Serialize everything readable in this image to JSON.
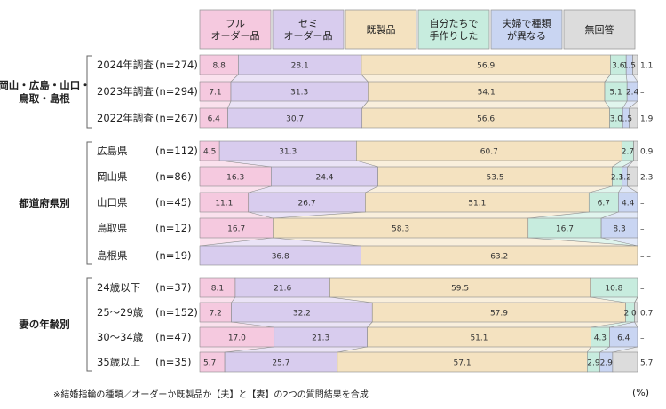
{
  "footnote": "※結婚指輪の種類／オーダーか既製品か【夫】と【妻】の2つの質問結果を合成",
  "unit_label": "(%)",
  "colors": {
    "full_order": "#f5c9df",
    "semi_order": "#d8ccee",
    "ready_made": "#f4e2c0",
    "self_made": "#c7ecde",
    "different": "#c9d5f2",
    "no_answer": "#dcdcdc"
  },
  "chart_data": {
    "type": "bar",
    "orientation": "horizontal",
    "stacked": true,
    "xlim": [
      0,
      100
    ],
    "legend_position": "top",
    "categories_legend": [
      {
        "key": "full_order",
        "label_lines": [
          "フル",
          "オーダー品"
        ]
      },
      {
        "key": "semi_order",
        "label_lines": [
          "セミ",
          "オーダー品"
        ]
      },
      {
        "key": "ready_made",
        "label_lines": [
          "既製品"
        ]
      },
      {
        "key": "self_made",
        "label_lines": [
          "自分たちで",
          "手作りした"
        ]
      },
      {
        "key": "different",
        "label_lines": [
          "夫婦で種類",
          "が異なる"
        ]
      },
      {
        "key": "no_answer",
        "label_lines": [
          "無回答"
        ]
      }
    ],
    "groups": [
      {
        "label_lines": [
          "岡山・広島・山口・",
          "鳥取・島根"
        ],
        "rows": [
          {
            "label": "2024年調査",
            "n": "(n=274)",
            "values": [
              8.8,
              28.1,
              56.9,
              3.6,
              1.5,
              1.1
            ],
            "labels": [
              "8.8",
              "28.1",
              "56.9",
              "3.6",
              "1.5",
              "1.1"
            ]
          },
          {
            "label": "2023年調査",
            "n": "(n=294)",
            "values": [
              7.1,
              31.3,
              54.1,
              5.1,
              2.4,
              0
            ],
            "labels": [
              "7.1",
              "31.3",
              "54.1",
              "5.1",
              "2.4",
              "–"
            ]
          },
          {
            "label": "2022年調査",
            "n": "(n=267)",
            "values": [
              6.4,
              30.7,
              56.6,
              3.0,
              1.5,
              1.9
            ],
            "labels": [
              "6.4",
              "30.7",
              "56.6",
              "3.0",
              "1.5",
              "1.9"
            ]
          }
        ]
      },
      {
        "label_lines": [
          "都道府県別"
        ],
        "rows": [
          {
            "label": "広島県",
            "n": "(n=112)",
            "values": [
              4.5,
              31.3,
              60.7,
              2.7,
              0,
              0.9
            ],
            "labels": [
              "4.5",
              "31.3",
              "60.7",
              "2.7",
              "",
              "0.9"
            ]
          },
          {
            "label": "岡山県",
            "n": "(n=86)",
            "values": [
              16.3,
              24.4,
              53.5,
              2.3,
              1.2,
              2.3
            ],
            "labels": [
              "16.3",
              "24.4",
              "53.5",
              "2.3",
              "1.2",
              "2.3"
            ]
          },
          {
            "label": "山口県",
            "n": "(n=45)",
            "values": [
              11.1,
              26.7,
              51.1,
              6.7,
              4.4,
              0
            ],
            "labels": [
              "11.1",
              "26.7",
              "51.1",
              "6.7",
              "4.4",
              "–"
            ]
          },
          {
            "label": "鳥取県",
            "n": "(n=12)",
            "values": [
              16.7,
              0,
              58.3,
              16.7,
              8.3,
              0
            ],
            "labels": [
              "16.7",
              "",
              "58.3",
              "16.7",
              "8.3",
              "–"
            ]
          },
          {
            "label": "島根県",
            "n": "(n=19)",
            "values": [
              0,
              36.8,
              63.2,
              0,
              0,
              0
            ],
            "labels": [
              "",
              "36.8",
              "63.2",
              "",
              "",
              "– –"
            ]
          }
        ]
      },
      {
        "label_lines": [
          "妻の年齢別"
        ],
        "rows": [
          {
            "label": "24歳以下",
            "n": "(n=37)",
            "values": [
              8.1,
              21.6,
              59.5,
              10.8,
              0,
              0
            ],
            "labels": [
              "8.1",
              "21.6",
              "59.5",
              "10.8",
              "",
              "–"
            ]
          },
          {
            "label": "25〜29歳",
            "n": "(n=152)",
            "values": [
              7.2,
              32.2,
              57.9,
              2.0,
              0,
              0.7
            ],
            "labels": [
              "7.2",
              "32.2",
              "57.9",
              "2.0",
              "",
              "0.7"
            ]
          },
          {
            "label": "30〜34歳",
            "n": "(n=47)",
            "values": [
              17.0,
              21.3,
              51.1,
              4.3,
              6.4,
              0
            ],
            "labels": [
              "17.0",
              "21.3",
              "51.1",
              "4.3",
              "6.4",
              "–"
            ]
          },
          {
            "label": "35歳以上",
            "n": "(n=35)",
            "values": [
              5.7,
              25.7,
              57.1,
              2.9,
              2.9,
              5.7
            ],
            "labels": [
              "5.7",
              "25.7",
              "57.1",
              "2.9",
              "2.9",
              "5.7"
            ]
          }
        ]
      }
    ]
  }
}
